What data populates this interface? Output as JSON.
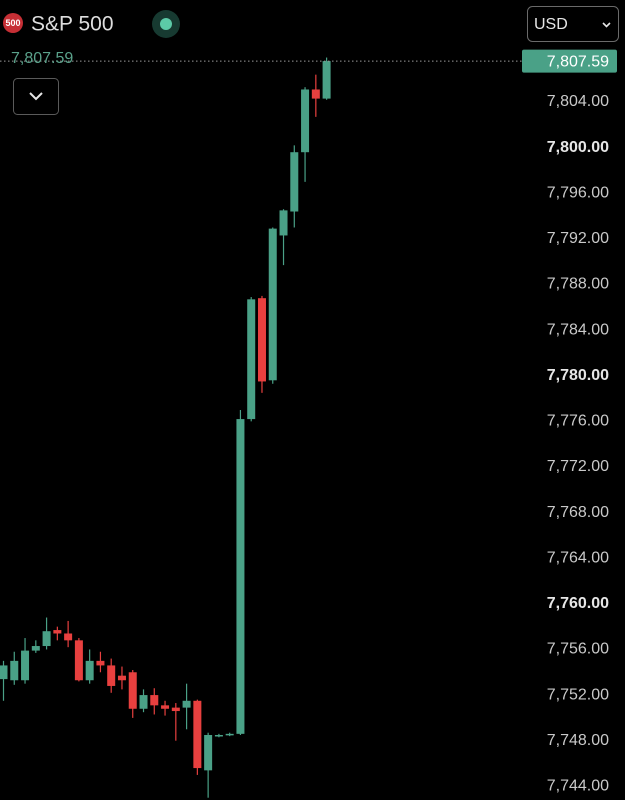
{
  "chart_data": {
    "type": "candlestick",
    "badge": "500",
    "title": "S&P 500",
    "currency": "USD",
    "last_price": {
      "value": 7807.59,
      "label": "7,807.59"
    },
    "up_color": "#4aa187",
    "down_color": "#e8403f",
    "categories": [
      null,
      null,
      null,
      null,
      null,
      null,
      null,
      null,
      null,
      null,
      null,
      null,
      null,
      null,
      null,
      null,
      null,
      null,
      null,
      null,
      null,
      null,
      null,
      null,
      null,
      null,
      null,
      null,
      null,
      null,
      null
    ],
    "open": [
      7753.4,
      7753.3,
      7753.3,
      7755.9,
      7756.3,
      7757.7,
      7757.4,
      7756.8,
      7753.3,
      7755.0,
      7754.6,
      7753.7,
      7754.0,
      7750.8,
      7752.0,
      7751.1,
      7750.9,
      7750.9,
      7751.5,
      7745.4,
      7748.4,
      7748.5,
      7748.6,
      7776.2,
      7786.8,
      7779.6,
      7792.3,
      7794.4,
      7799.6,
      7805.1,
      7804.3
    ],
    "high": [
      7755.0,
      7755.8,
      7757.0,
      7756.8,
      7758.8,
      7758.0,
      7758.5,
      7757.0,
      7756.0,
      7755.8,
      7755.2,
      7754.5,
      7754.2,
      7752.5,
      7752.6,
      7751.5,
      7751.3,
      7753.0,
      7751.6,
      7748.7,
      7748.6,
      7748.7,
      7777.0,
      7786.9,
      7787.0,
      7793.0,
      7794.6,
      7800.2,
      7805.3,
      7806.4,
      7807.9
    ],
    "low": [
      7751.5,
      7752.9,
      7753.0,
      7755.7,
      7756.0,
      7756.8,
      7756.2,
      7753.2,
      7753.0,
      7754.0,
      7752.2,
      7752.5,
      7750.0,
      7750.5,
      7750.3,
      7750.2,
      7748.0,
      7749.0,
      7745.0,
      7743.0,
      7748.3,
      7748.4,
      7748.5,
      7776.0,
      7778.5,
      7779.3,
      7789.7,
      7793.0,
      7797.0,
      7802.7,
      7804.2
    ],
    "close": [
      7754.6,
      7755.0,
      7755.9,
      7756.3,
      7757.6,
      7757.4,
      7756.8,
      7753.3,
      7755.0,
      7754.6,
      7752.8,
      7753.3,
      7750.8,
      7752.0,
      7751.1,
      7750.8,
      7750.6,
      7751.5,
      7745.6,
      7748.5,
      7748.5,
      7748.6,
      7776.2,
      7786.7,
      7779.5,
      7792.9,
      7794.5,
      7799.6,
      7805.1,
      7804.3,
      7807.59
    ],
    "ylim": [
      7742.8,
      7809
    ],
    "yticks": [
      {
        "value": 7744,
        "label": "7,744.00"
      },
      {
        "value": 7748,
        "label": "7,748.00"
      },
      {
        "value": 7752,
        "label": "7,752.00"
      },
      {
        "value": 7756,
        "label": "7,756.00"
      },
      {
        "value": 7760,
        "label": "7,760.00",
        "bold": true
      },
      {
        "value": 7764,
        "label": "7,764.00"
      },
      {
        "value": 7768,
        "label": "7,768.00"
      },
      {
        "value": 7772,
        "label": "7,772.00"
      },
      {
        "value": 7776,
        "label": "7,776.00"
      },
      {
        "value": 7780,
        "label": "7,780.00",
        "bold": true
      },
      {
        "value": 7784,
        "label": "7,784.00"
      },
      {
        "value": 7788,
        "label": "7,788.00"
      },
      {
        "value": 7792,
        "label": "7,792.00"
      },
      {
        "value": 7796,
        "label": "7,796.00"
      },
      {
        "value": 7800,
        "label": "7,800.00",
        "bold": true
      },
      {
        "value": 7804,
        "label": "7,804.00"
      }
    ]
  }
}
